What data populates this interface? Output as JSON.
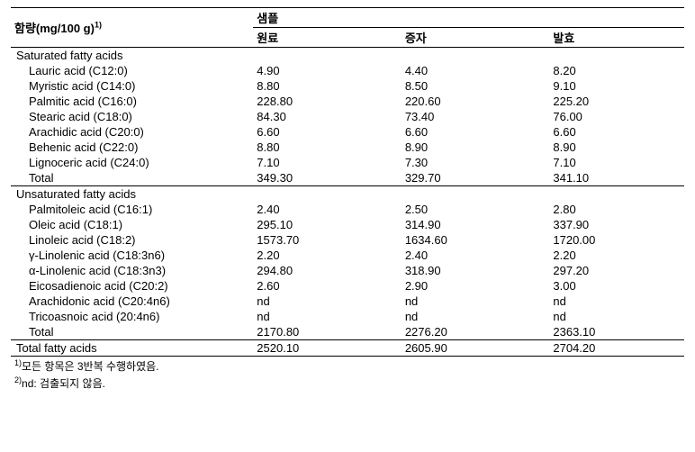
{
  "table": {
    "header_label": "함량(mg/100 g)",
    "header_sup": "1)",
    "sample_label": "샘플",
    "columns": [
      "원료",
      "증자",
      "발효"
    ],
    "sections": [
      {
        "title": "Saturated fatty acids",
        "rows": [
          {
            "name": "Lauric acid (C12:0)",
            "v": [
              "4.90",
              "4.40",
              "8.20"
            ]
          },
          {
            "name": "Myristic acid (C14:0)",
            "v": [
              "8.80",
              "8.50",
              "9.10"
            ]
          },
          {
            "name": "Palmitic acid (C16:0)",
            "v": [
              "228.80",
              "220.60",
              "225.20"
            ]
          },
          {
            "name": "Stearic acid (C18:0)",
            "v": [
              "84.30",
              "73.40",
              "76.00"
            ]
          },
          {
            "name": "Arachidic acid (C20:0)",
            "v": [
              "6.60",
              "6.60",
              "6.60"
            ]
          },
          {
            "name": "Behenic acid (C22:0)",
            "v": [
              "8.80",
              "8.90",
              "8.90"
            ]
          },
          {
            "name": "Lignoceric acid (C24:0)",
            "v": [
              "7.10",
              "7.30",
              "7.10"
            ]
          },
          {
            "name": "Total",
            "v": [
              "349.30",
              "329.70",
              "341.10"
            ]
          }
        ]
      },
      {
        "title": "Unsaturated fatty acids",
        "rows": [
          {
            "name": "Palmitoleic acid (C16:1)",
            "v": [
              "2.40",
              "2.50",
              "2.80"
            ]
          },
          {
            "name": "Oleic acid (C18:1)",
            "v": [
              "295.10",
              "314.90",
              "337.90"
            ]
          },
          {
            "name": "Linoleic acid (C18:2)",
            "v": [
              "1573.70",
              "1634.60",
              "1720.00"
            ]
          },
          {
            "name": "γ-Linolenic acid (C18:3n6)",
            "v": [
              "2.20",
              "2.40",
              "2.20"
            ]
          },
          {
            "name": "α-Linolenic acid (C18:3n3)",
            "v": [
              "294.80",
              "318.90",
              "297.20"
            ]
          },
          {
            "name": "Eicosadienoic acid (C20:2)",
            "v": [
              "2.60",
              "2.90",
              "3.00"
            ]
          },
          {
            "name": "Arachidonic acid (C20:4n6)",
            "v": [
              "nd",
              "nd",
              "nd"
            ]
          },
          {
            "name": "Tricoasnoic acid (20:4n6)",
            "v": [
              "nd",
              "nd",
              "nd"
            ]
          },
          {
            "name": "Total",
            "v": [
              "2170.80",
              "2276.20",
              "2363.10"
            ]
          }
        ]
      }
    ],
    "grand_total": {
      "name": "Total fatty acids",
      "v": [
        "2520.10",
        "2605.90",
        "2704.20"
      ]
    },
    "footnotes": [
      {
        "sup": "1)",
        "text": "모든 항목은 3반복 수행하였음."
      },
      {
        "sup": "2)",
        "text": "nd: 검출되지 않음."
      }
    ],
    "col_widths": [
      "36%",
      "22%",
      "22%",
      "20%"
    ],
    "colors": {
      "text": "#000000",
      "bg": "#ffffff",
      "border": "#000000"
    },
    "font_size": 13
  }
}
